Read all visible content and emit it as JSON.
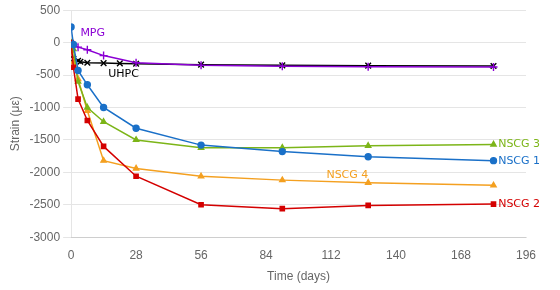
{
  "chart_data": {
    "type": "line",
    "title": "",
    "xlabel": "Time (days)",
    "ylabel": "Strain (με)",
    "xlim": [
      0,
      196
    ],
    "xticks": [
      0,
      28,
      56,
      84,
      112,
      140,
      168,
      196
    ],
    "ylim": [
      -3000,
      500
    ],
    "yticks": [
      500,
      0,
      -500,
      -1000,
      -1500,
      -2000,
      -2500,
      -3000
    ],
    "grid": "y",
    "series": [
      {
        "name": "NSCG 1",
        "color": "#1a70c8",
        "marker": "circle",
        "x": [
          0,
          1,
          3,
          7,
          14,
          28,
          56,
          91,
          128,
          182
        ],
        "values": [
          240,
          -30,
          -430,
          -650,
          -1000,
          -1320,
          -1580,
          -1680,
          -1760,
          -1820
        ]
      },
      {
        "name": "NSCG 2",
        "color": "#d40000",
        "marker": "square",
        "x": [
          0,
          1,
          3,
          7,
          14,
          28,
          56,
          91,
          128,
          182
        ],
        "values": [
          0,
          -380,
          -870,
          -1200,
          -1600,
          -2060,
          -2500,
          -2560,
          -2510,
          -2490
        ]
      },
      {
        "name": "NSCG 3",
        "color": "#7cb518",
        "marker": "triangle",
        "x": [
          0,
          1,
          3,
          7,
          14,
          28,
          56,
          91,
          128,
          182
        ],
        "values": [
          0,
          -100,
          -600,
          -1000,
          -1220,
          -1500,
          -1620,
          -1620,
          -1590,
          -1570
        ]
      },
      {
        "name": "NSCG 4",
        "color": "#f4a020",
        "marker": "triangle",
        "x": [
          0,
          1,
          3,
          7,
          14,
          28,
          56,
          91,
          128,
          182
        ],
        "values": [
          -30,
          -300,
          -560,
          -1050,
          -1820,
          -1940,
          -2060,
          -2120,
          -2160,
          -2200
        ]
      },
      {
        "name": "MPG",
        "color": "#8b00d4",
        "marker": "plus",
        "x": [
          0,
          1,
          3,
          7,
          14,
          28,
          56,
          91,
          128,
          182
        ],
        "values": [
          -10,
          -30,
          -70,
          -110,
          -200,
          -310,
          -350,
          -365,
          -370,
          -375
        ]
      },
      {
        "name": "UHPC",
        "color": "#000000",
        "marker": "x",
        "x": [
          0,
          1,
          3,
          4,
          7,
          14,
          21,
          28,
          56,
          91,
          128,
          182
        ],
        "values": [
          -100,
          -250,
          -280,
          -295,
          -310,
          -315,
          -320,
          -325,
          -340,
          -350,
          -355,
          -360
        ]
      }
    ],
    "annotations": [
      {
        "text": "NSCG 1",
        "x": 184,
        "y": -1820
      },
      {
        "text": "NSCG 2",
        "x": 184,
        "y": -2490
      },
      {
        "text": "NSCG 3",
        "x": 184,
        "y": -1570
      },
      {
        "text": "NSCG 4",
        "x": 110,
        "y": -2050
      },
      {
        "text": "MPG",
        "x": 4,
        "y": 140
      },
      {
        "text": "UHPC",
        "x": 16,
        "y": -490
      }
    ]
  }
}
